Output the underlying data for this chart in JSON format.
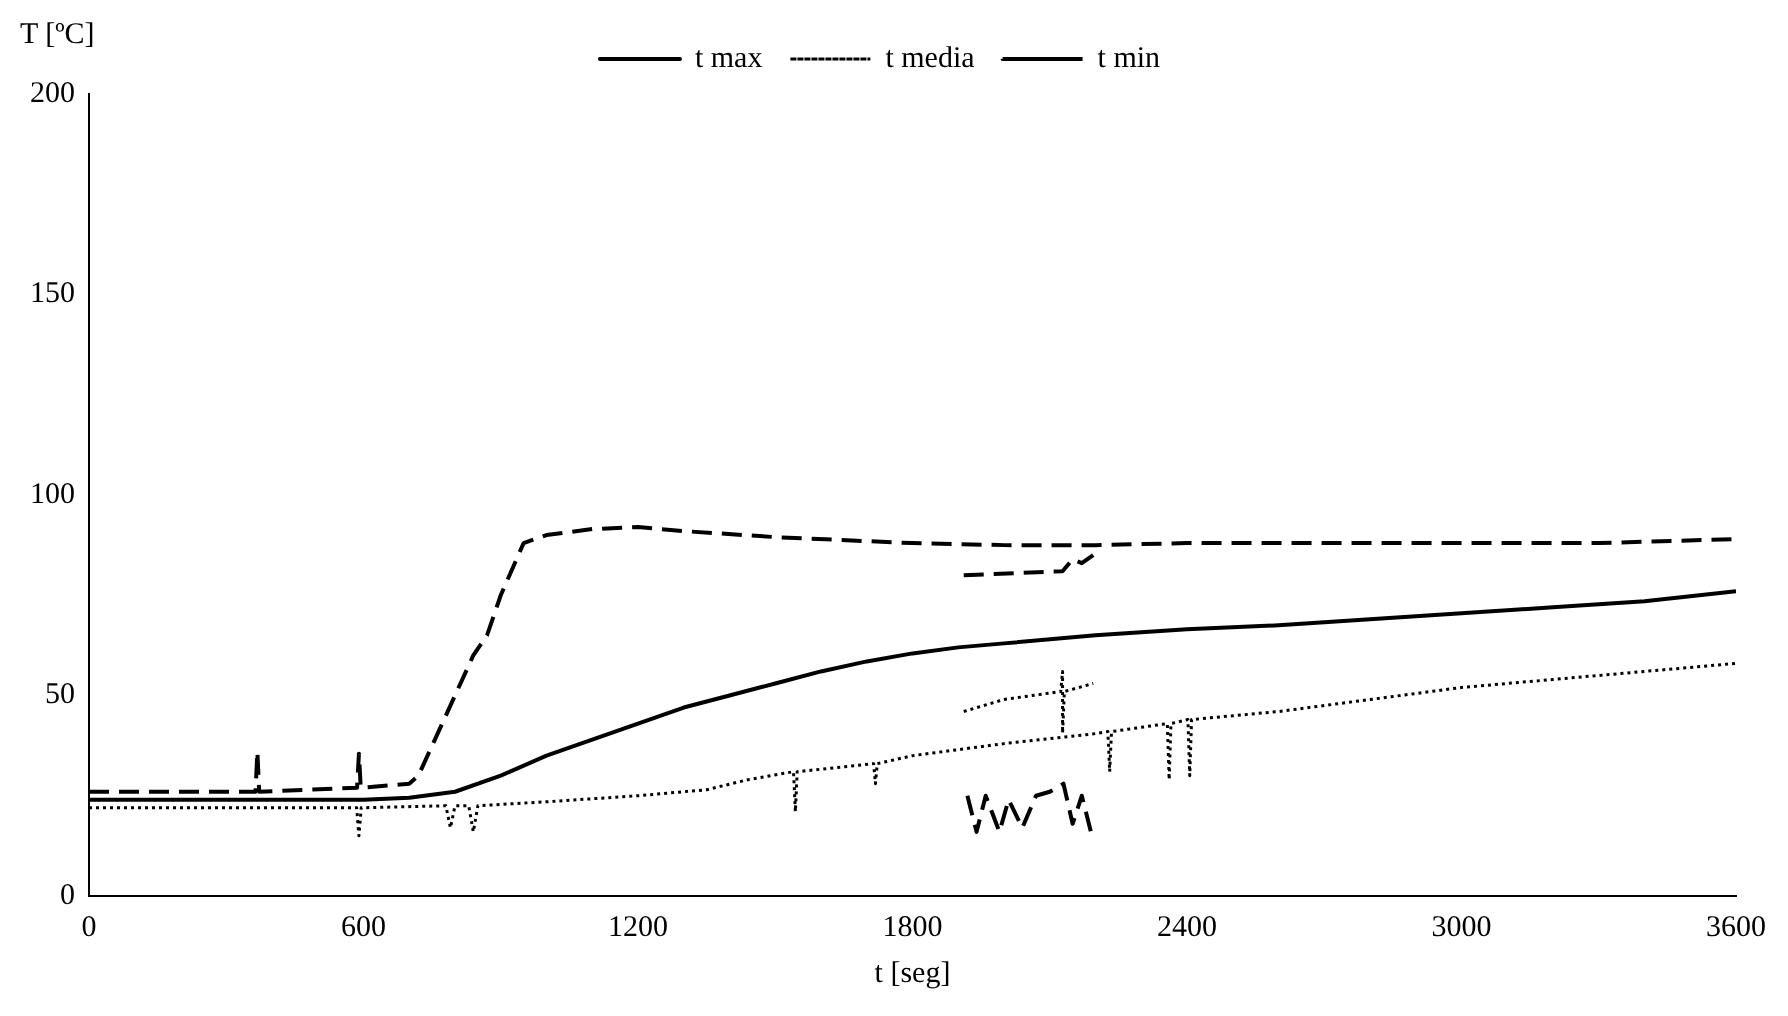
{
  "chart_data": {
    "type": "line",
    "xlabel": "t [seg]",
    "ylabel": "T [ºC]",
    "xlim": [
      0,
      3600
    ],
    "xticks": [
      0,
      600,
      1200,
      1800,
      2400,
      3000,
      3600
    ],
    "ylim": [
      0,
      200
    ],
    "yticks": [
      0,
      50,
      100,
      150,
      200
    ],
    "grid": false,
    "legend": "top",
    "marker": "none",
    "series": [
      {
        "name": "t max",
        "color": "#000000",
        "line_style": "solid",
        "x": [
          0,
          300,
          600,
          700,
          800,
          900,
          1000,
          1100,
          1200,
          1300,
          1400,
          1500,
          1600,
          1700,
          1800,
          1900,
          2000,
          2200,
          2400,
          2600,
          2800,
          3000,
          3200,
          3400,
          3600
        ],
        "values": [
          24,
          24,
          24,
          24.5,
          26,
          30,
          35,
          39,
          43,
          47,
          50,
          53,
          56,
          58.5,
          60.5,
          62,
          63,
          65,
          66.5,
          67.5,
          69,
          70.5,
          72,
          73.5,
          76
        ]
      },
      {
        "name": "t media",
        "color": "#000000",
        "line_style": "dotted",
        "x": [
          0,
          300,
          585,
          590,
          595,
          780,
          790,
          800,
          830,
          840,
          850,
          1000,
          1200,
          1350,
          1440,
          1540,
          1544,
          1548,
          1715,
          1719,
          1723,
          1800,
          2000,
          2200,
          2227,
          2231,
          2235,
          2357,
          2361,
          2365,
          2402,
          2406,
          2410,
          2600,
          2800,
          3000,
          3200,
          3400,
          3600,
          null,
          1912,
          2000,
          2124,
          2128,
          2128,
          2132,
          2195
        ],
        "values": [
          22,
          22,
          22,
          15,
          22,
          22.5,
          17,
          22.5,
          22.5,
          16,
          22.5,
          23.5,
          25,
          26.5,
          29,
          31,
          21,
          31,
          33,
          28,
          33,
          35,
          38,
          40.5,
          41,
          31,
          41,
          43,
          29,
          43,
          44,
          30,
          44,
          46,
          49,
          52,
          54,
          56,
          58,
          null,
          46,
          49,
          51,
          56,
          40.6,
          51,
          53
        ]
      },
      {
        "name": "t min",
        "color": "#000000",
        "line_style": "dashed",
        "x": [
          0,
          300,
          364,
          368,
          372,
          586,
          590,
          594,
          700,
          720,
          760,
          800,
          840,
          870,
          900,
          950,
          1000,
          1100,
          1200,
          1300,
          1500,
          1800,
          2000,
          2200,
          2400,
          2700,
          3000,
          3300,
          3600,
          null,
          1912,
          2128,
          2150,
          2170,
          2195,
          null,
          1920,
          1940,
          1960,
          1990,
          2010,
          2040,
          2070,
          2100,
          2130,
          2150,
          2170,
          2190
        ],
        "values": [
          26,
          26,
          26,
          36,
          26,
          27,
          35.5,
          27,
          28,
          30,
          40,
          50,
          60,
          65,
          75,
          88,
          90,
          91.5,
          92,
          91,
          89.5,
          88,
          87.5,
          87.5,
          88,
          88,
          88,
          88,
          89,
          null,
          80,
          81,
          84,
          83,
          85,
          null,
          25,
          16,
          25,
          16,
          24,
          17,
          25,
          26,
          28,
          18,
          25,
          16
        ]
      }
    ]
  }
}
